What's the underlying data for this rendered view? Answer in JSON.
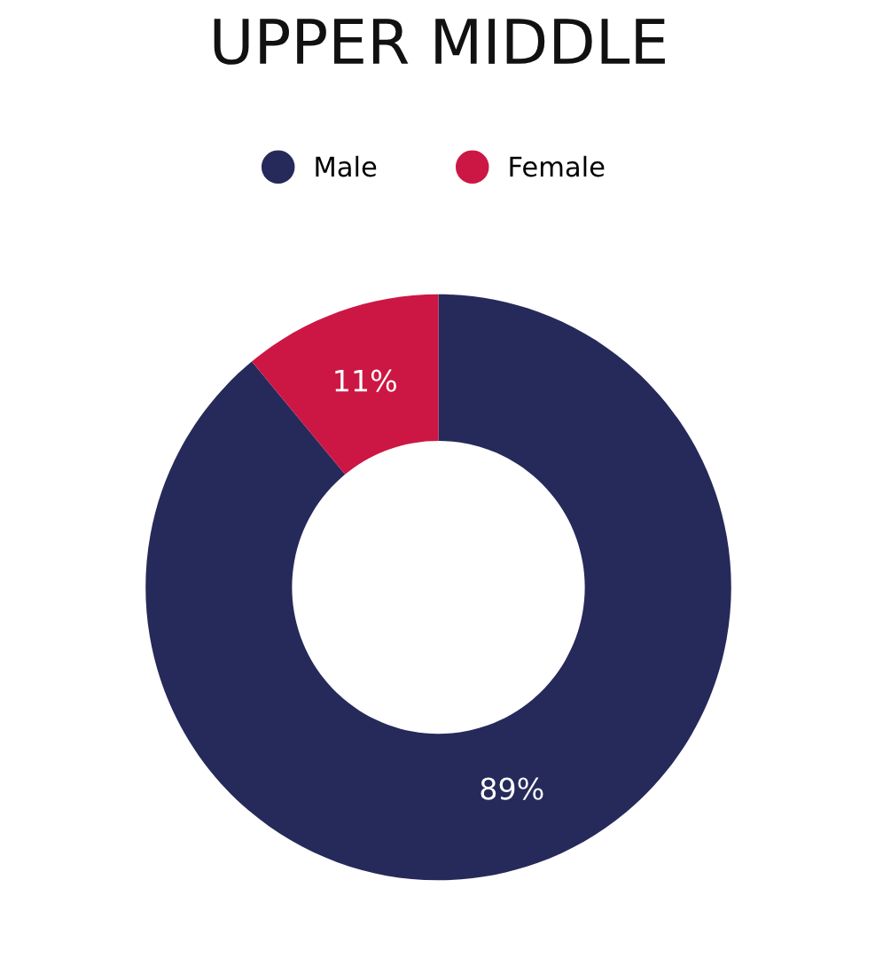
{
  "chart_data": {
    "type": "donut",
    "title": "UPPER MIDDLE",
    "categories": [
      "Male",
      "Female"
    ],
    "values": [
      89,
      11
    ],
    "colors": [
      "#262a5a",
      "#cc1744"
    ],
    "value_labels": [
      "89%",
      "11%"
    ],
    "legend": "top"
  }
}
